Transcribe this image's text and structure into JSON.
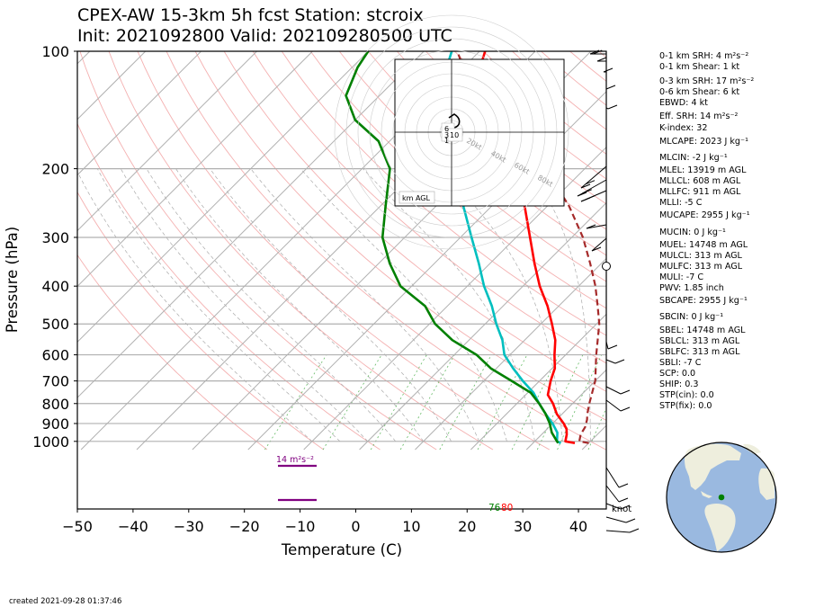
{
  "header": {
    "title_line1": "CPEX-AW 15-3km  5h fcst  Station: stcroix",
    "title_line2": "Init: 2021092800  Valid: 202109280500 UTC"
  },
  "chart_data": {
    "type": "line",
    "subtype": "skew-T log-p diagram",
    "xlabel": "Temperature (C)",
    "ylabel": "Pressure (hPa)",
    "xlim": [
      -50,
      45
    ],
    "ylim": [
      1050,
      100
    ],
    "yscale": "log",
    "xticks": [
      -50,
      -40,
      -30,
      -20,
      -10,
      0,
      10,
      20,
      30,
      40
    ],
    "yticks": [
      100,
      200,
      300,
      400,
      500,
      600,
      700,
      800,
      900,
      1000
    ],
    "series": [
      {
        "color": "#ff0000",
        "points": [
          [
            1010,
            27.5
          ],
          [
            1000,
            25.5
          ],
          [
            960,
            24.5
          ],
          [
            930,
            23.5
          ],
          [
            900,
            22
          ],
          [
            850,
            19
          ],
          [
            800,
            16.5
          ],
          [
            760,
            14
          ],
          [
            700,
            12
          ],
          [
            650,
            10.5
          ],
          [
            600,
            8
          ],
          [
            550,
            5.5
          ],
          [
            500,
            2
          ],
          [
            450,
            -2
          ],
          [
            400,
            -7
          ],
          [
            350,
            -12
          ],
          [
            300,
            -17.5
          ],
          [
            250,
            -24
          ],
          [
            200,
            -32
          ],
          [
            170,
            -40
          ],
          [
            150,
            -46
          ],
          [
            130,
            -52
          ],
          [
            110,
            -57
          ],
          [
            100,
            -59
          ]
        ]
      },
      {
        "color": "#00bfbf",
        "points": [
          [
            1010,
            25
          ],
          [
            1000,
            24
          ],
          [
            950,
            22.5
          ],
          [
            900,
            20
          ],
          [
            850,
            17
          ],
          [
            800,
            14
          ],
          [
            750,
            11
          ],
          [
            700,
            7
          ],
          [
            650,
            3
          ],
          [
            600,
            -1
          ],
          [
            550,
            -4
          ],
          [
            500,
            -8
          ],
          [
            450,
            -12
          ],
          [
            400,
            -17
          ],
          [
            350,
            -22
          ],
          [
            300,
            -28
          ],
          [
            250,
            -35
          ],
          [
            200,
            -43
          ],
          [
            170,
            -50
          ],
          [
            150,
            -56
          ],
          [
            130,
            -60
          ],
          [
            110,
            -63
          ],
          [
            100,
            -65
          ]
        ]
      },
      {
        "color": "#008000",
        "points": [
          [
            1010,
            24.5
          ],
          [
            1000,
            24
          ],
          [
            950,
            21.5
          ],
          [
            900,
            19.5
          ],
          [
            850,
            17
          ],
          [
            800,
            14
          ],
          [
            750,
            10.5
          ],
          [
            700,
            5
          ],
          [
            650,
            -1
          ],
          [
            600,
            -6
          ],
          [
            550,
            -13
          ],
          [
            500,
            -19
          ],
          [
            450,
            -24
          ],
          [
            400,
            -32
          ],
          [
            350,
            -38
          ],
          [
            300,
            -44
          ],
          [
            250,
            -49
          ],
          [
            200,
            -55
          ],
          [
            170,
            -62
          ],
          [
            150,
            -70
          ],
          [
            130,
            -76
          ],
          [
            110,
            -79
          ],
          [
            100,
            -80
          ]
        ]
      },
      {
        "color": "#a52a2a",
        "dashed": true,
        "points": [
          [
            1010,
            30
          ],
          [
            1000,
            28
          ],
          [
            960,
            27
          ],
          [
            920,
            26.5
          ],
          [
            880,
            25.5
          ],
          [
            850,
            24.5
          ],
          [
            800,
            23
          ],
          [
            700,
            20
          ],
          [
            600,
            15.5
          ],
          [
            500,
            10.5
          ],
          [
            450,
            7
          ],
          [
            400,
            3
          ],
          [
            350,
            -2
          ],
          [
            300,
            -8
          ],
          [
            250,
            -16
          ],
          [
            200,
            -27
          ],
          [
            170,
            -36
          ],
          [
            150,
            -44
          ],
          [
            130,
            -52
          ],
          [
            110,
            -60
          ],
          [
            100,
            -64
          ]
        ]
      }
    ],
    "annotations": {
      "srh_label": "14 m²s⁻²",
      "sfc_dew_label": "76",
      "sfc_temp_label": "80",
      "barb_unit_label": "knot",
      "hodo_rings": [
        "20kt",
        "40kt",
        "60kt",
        "80kt"
      ],
      "hodo_labels": [
        "6",
        "3",
        "1",
        "10"
      ],
      "hodo_legend": "km AGL"
    }
  },
  "indices": [
    "0-1 km SRH: 4 m²s⁻²",
    "0-1 km Shear: 1 kt",
    "0-3 km SRH: 17 m²s⁻²",
    "0-6 km Shear: 6 kt",
    "EBWD: 4 kt",
    "Eff. SRH: 14 m²s⁻²",
    "K-index: 32",
    "MLCAPE: 2023 J kg⁻¹",
    "MLCIN: -2 J kg⁻¹",
    "MLEL: 13919 m AGL",
    "MLLCL: 608 m AGL",
    "MLLFC: 911 m AGL",
    "MLLI: -5 C",
    "MUCAPE: 2955 J kg⁻¹",
    "MUCIN: 0 J kg⁻¹",
    "MUEL: 14748 m AGL",
    "MULCL: 313 m AGL",
    "MULFC: 313 m AGL",
    "MULI: -7 C",
    "PWV: 1.85 inch",
    "SBCAPE: 2955 J kg⁻¹",
    "SBCIN: 0 J kg⁻¹",
    "SBEL: 14748 m AGL",
    "SBLCL: 313 m AGL",
    "SBLFC: 313 m AGL",
    "SBLI: -7 C",
    "SCP: 0.0",
    "SHIP: 0.3",
    "STP(cin): 0.0",
    "STP(fix): 0.0"
  ],
  "footer": {
    "created": "created 2021-09-28 01:37:46"
  },
  "colors": {
    "temperature": "#ff0000",
    "dewpoint": "#008000",
    "wetbulb": "#00bfbf",
    "parcel": "#a52a2a",
    "srh_bar": "#800080",
    "isobar": "#b0b0b0",
    "dry_adiabat": "#f4b0b0",
    "mixing_ratio": "#66bb66",
    "land": "#eeeedd",
    "ocean": "#9ab9e0"
  }
}
